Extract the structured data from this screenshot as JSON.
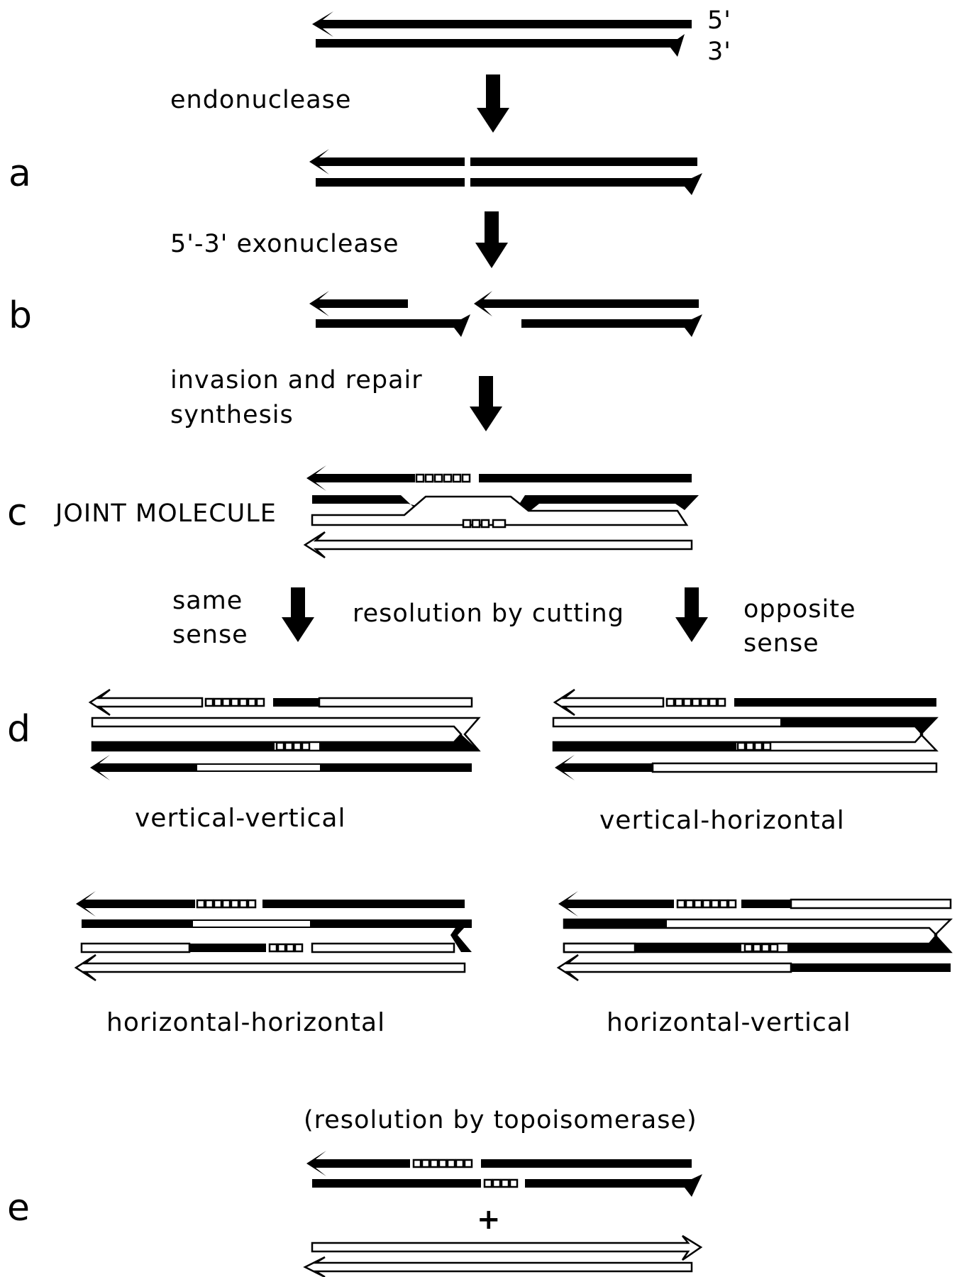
{
  "strand_ends": {
    "five_prime": "5'",
    "three_prime": "3'"
  },
  "steps": {
    "endonuclease": "endonuclease",
    "exonuclease": "5'-3' exonuclease",
    "invasion_line1": "invasion and repair",
    "invasion_line2": "synthesis",
    "resolution_cutting": "resolution by cutting",
    "same_sense_line1": "same",
    "same_sense_line2": "sense",
    "opposite_sense_line1": "opposite",
    "opposite_sense_line2": "sense",
    "topoisomerase": "(resolution by topoisomerase)"
  },
  "panel_letters": {
    "a": "a",
    "b": "b",
    "c": "c",
    "d": "d",
    "e": "e"
  },
  "joint_molecule": "JOINT MOLECULE",
  "products": {
    "vv": "vertical-vertical",
    "vh": "vertical-horizontal",
    "hh": "horizontal-horizontal",
    "hv": "horizontal-vertical"
  },
  "plus_sign": "+",
  "colors": {
    "ink": "#000000",
    "paper": "#ffffff"
  }
}
